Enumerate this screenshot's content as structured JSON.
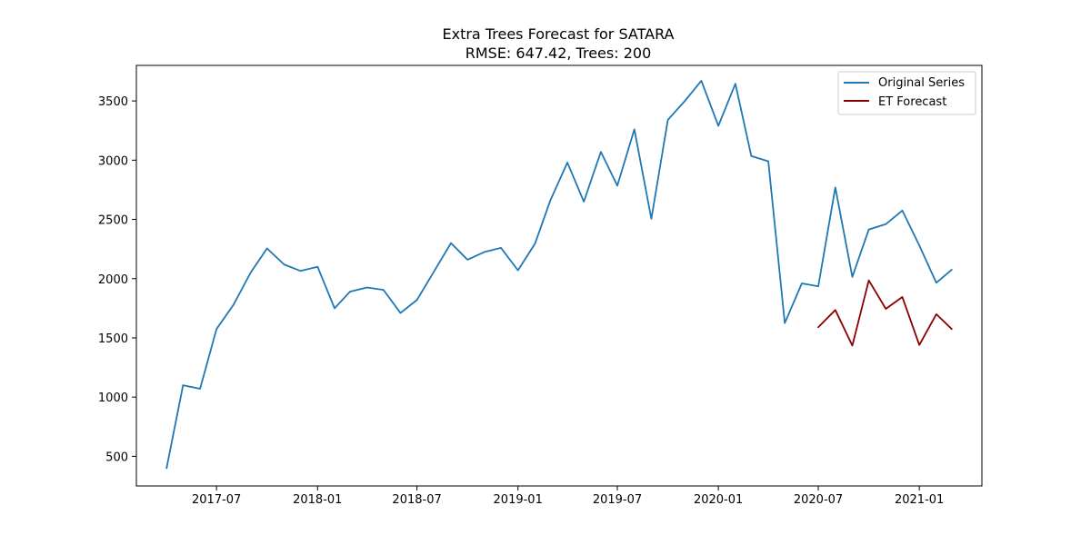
{
  "chart_data": {
    "type": "line",
    "title": "Extra Trees Forecast for SATARA",
    "subtitle": "RMSE: 647.42, Trees: 200",
    "xlabel": "",
    "ylabel": "",
    "grid": false,
    "legend_position": "top-right",
    "xlim": [
      "2017-02-05",
      "2021-04-25"
    ],
    "ylim": [
      250,
      3800
    ],
    "x_ticks": [
      {
        "date": "2017-07-01",
        "label": "2017-07"
      },
      {
        "date": "2018-01-01",
        "label": "2018-01"
      },
      {
        "date": "2018-07-01",
        "label": "2018-07"
      },
      {
        "date": "2019-01-01",
        "label": "2019-01"
      },
      {
        "date": "2019-07-01",
        "label": "2019-07"
      },
      {
        "date": "2020-01-01",
        "label": "2020-01"
      },
      {
        "date": "2020-07-01",
        "label": "2020-07"
      },
      {
        "date": "2021-01-01",
        "label": "2021-01"
      }
    ],
    "y_ticks": [
      {
        "value": 500,
        "label": "500"
      },
      {
        "value": 1000,
        "label": "1000"
      },
      {
        "value": 1500,
        "label": "1500"
      },
      {
        "value": 2000,
        "label": "2000"
      },
      {
        "value": 2500,
        "label": "2500"
      },
      {
        "value": 3000,
        "label": "3000"
      },
      {
        "value": 3500,
        "label": "3500"
      }
    ],
    "series": [
      {
        "name": "Original Series",
        "color": "#1f77b4",
        "x": [
          "2017-04-01",
          "2017-05-01",
          "2017-06-01",
          "2017-07-01",
          "2017-08-01",
          "2017-09-01",
          "2017-10-01",
          "2017-11-01",
          "2017-12-01",
          "2018-01-01",
          "2018-02-01",
          "2018-03-01",
          "2018-04-01",
          "2018-05-01",
          "2018-06-01",
          "2018-07-01",
          "2018-08-01",
          "2018-09-01",
          "2018-10-01",
          "2018-11-01",
          "2018-12-01",
          "2019-01-01",
          "2019-02-01",
          "2019-03-01",
          "2019-04-01",
          "2019-05-01",
          "2019-06-01",
          "2019-07-01",
          "2019-08-01",
          "2019-09-01",
          "2019-10-01",
          "2019-11-01",
          "2019-12-01",
          "2020-01-01",
          "2020-02-01",
          "2020-03-01",
          "2020-04-01",
          "2020-05-01",
          "2020-06-01",
          "2020-07-01",
          "2020-08-01",
          "2020-09-01",
          "2020-10-01",
          "2020-11-01",
          "2020-12-01",
          "2021-01-01",
          "2021-02-01",
          "2021-03-01"
        ],
        "values": [
          400,
          1100,
          1070,
          1575,
          1780,
          2050,
          2255,
          2120,
          2065,
          2100,
          1750,
          1890,
          1925,
          1905,
          1710,
          1820,
          2060,
          2300,
          2160,
          2225,
          2260,
          2070,
          2295,
          2660,
          2980,
          2650,
          3070,
          2785,
          3260,
          2505,
          3340,
          3500,
          3670,
          3290,
          3645,
          3035,
          2990,
          1625,
          1960,
          1935,
          2770,
          2015,
          2415,
          2460,
          2575,
          2280,
          1965,
          2075
        ]
      },
      {
        "name": "ET Forecast",
        "color": "#8b0000",
        "x": [
          "2020-07-01",
          "2020-08-01",
          "2020-09-01",
          "2020-10-01",
          "2020-11-01",
          "2020-12-01",
          "2021-01-01",
          "2021-02-01",
          "2021-03-01"
        ],
        "values": [
          1590,
          1735,
          1435,
          1985,
          1745,
          1845,
          1440,
          1700,
          1575
        ]
      }
    ]
  }
}
